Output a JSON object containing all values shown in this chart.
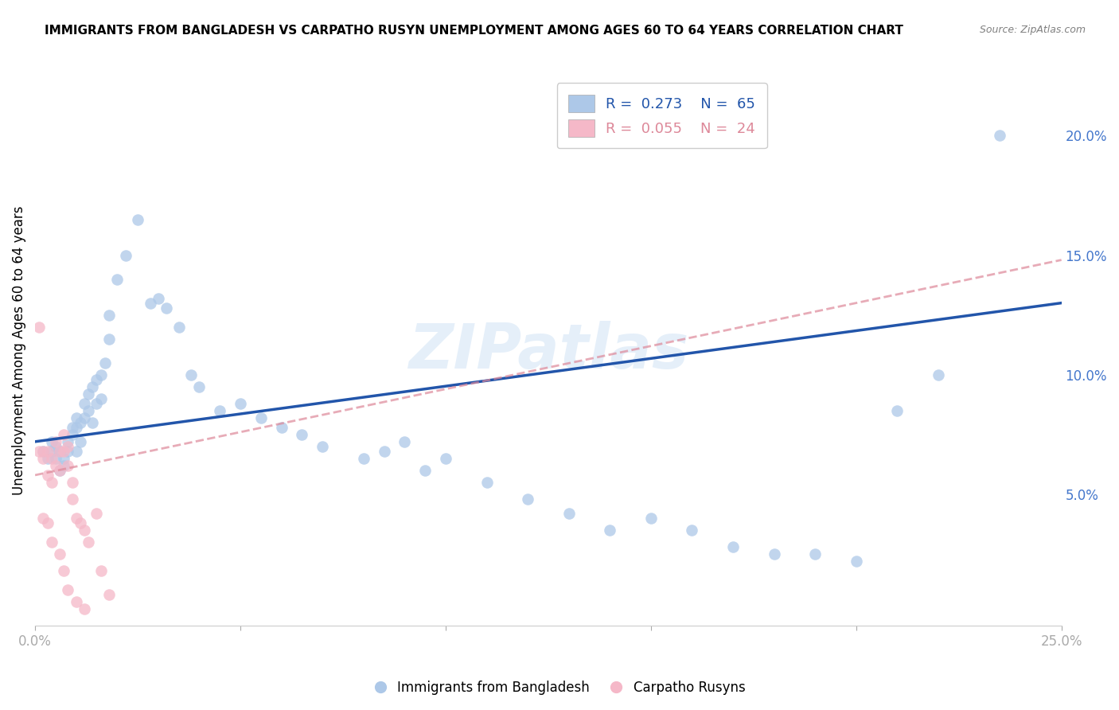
{
  "title": "IMMIGRANTS FROM BANGLADESH VS CARPATHO RUSYN UNEMPLOYMENT AMONG AGES 60 TO 64 YEARS CORRELATION CHART",
  "source": "Source: ZipAtlas.com",
  "ylabel": "Unemployment Among Ages 60 to 64 years",
  "watermark": "ZIPatlas",
  "xlim": [
    0,
    0.25
  ],
  "ylim": [
    -0.005,
    0.225
  ],
  "xticks": [
    0.0,
    0.05,
    0.1,
    0.15,
    0.2,
    0.25
  ],
  "xtick_labels": [
    "0.0%",
    "",
    "",
    "",
    "",
    "25.0%"
  ],
  "yticks_right": [
    0.05,
    0.1,
    0.15,
    0.2
  ],
  "ytick_right_labels": [
    "5.0%",
    "10.0%",
    "15.0%",
    "20.0%"
  ],
  "blue_scatter_x": [
    0.002,
    0.003,
    0.004,
    0.004,
    0.005,
    0.005,
    0.006,
    0.006,
    0.007,
    0.007,
    0.008,
    0.008,
    0.009,
    0.009,
    0.01,
    0.01,
    0.01,
    0.011,
    0.011,
    0.012,
    0.012,
    0.013,
    0.013,
    0.014,
    0.014,
    0.015,
    0.015,
    0.016,
    0.016,
    0.017,
    0.018,
    0.018,
    0.02,
    0.022,
    0.025,
    0.028,
    0.03,
    0.032,
    0.035,
    0.038,
    0.04,
    0.045,
    0.05,
    0.055,
    0.06,
    0.065,
    0.07,
    0.08,
    0.085,
    0.09,
    0.095,
    0.1,
    0.11,
    0.12,
    0.13,
    0.14,
    0.15,
    0.16,
    0.17,
    0.18,
    0.19,
    0.2,
    0.21,
    0.22,
    0.235
  ],
  "blue_scatter_y": [
    0.068,
    0.065,
    0.068,
    0.072,
    0.07,
    0.065,
    0.068,
    0.06,
    0.065,
    0.062,
    0.072,
    0.068,
    0.078,
    0.075,
    0.082,
    0.078,
    0.068,
    0.08,
    0.072,
    0.088,
    0.082,
    0.092,
    0.085,
    0.095,
    0.08,
    0.098,
    0.088,
    0.1,
    0.09,
    0.105,
    0.125,
    0.115,
    0.14,
    0.15,
    0.165,
    0.13,
    0.132,
    0.128,
    0.12,
    0.1,
    0.095,
    0.085,
    0.088,
    0.082,
    0.078,
    0.075,
    0.07,
    0.065,
    0.068,
    0.072,
    0.06,
    0.065,
    0.055,
    0.048,
    0.042,
    0.035,
    0.04,
    0.035,
    0.028,
    0.025,
    0.025,
    0.022,
    0.085,
    0.1,
    0.2
  ],
  "pink_scatter_x": [
    0.001,
    0.002,
    0.002,
    0.003,
    0.003,
    0.004,
    0.004,
    0.005,
    0.005,
    0.006,
    0.006,
    0.007,
    0.007,
    0.008,
    0.008,
    0.009,
    0.009,
    0.01,
    0.011,
    0.012,
    0.013,
    0.015,
    0.016,
    0.018
  ],
  "pink_scatter_y": [
    0.068,
    0.068,
    0.065,
    0.068,
    0.058,
    0.065,
    0.055,
    0.072,
    0.062,
    0.068,
    0.06,
    0.075,
    0.068,
    0.07,
    0.062,
    0.055,
    0.048,
    0.04,
    0.038,
    0.035,
    0.03,
    0.042,
    0.018,
    0.008
  ],
  "pink_extra_x": [
    0.001,
    0.002,
    0.003,
    0.004,
    0.006,
    0.007,
    0.008,
    0.01,
    0.012
  ],
  "pink_extra_y": [
    0.12,
    0.04,
    0.038,
    0.03,
    0.025,
    0.018,
    0.01,
    0.005,
    0.002
  ],
  "blue_line_x": [
    0.0,
    0.25
  ],
  "blue_line_y": [
    0.072,
    0.13
  ],
  "pink_line_x": [
    0.0,
    0.25
  ],
  "pink_line_y": [
    0.058,
    0.148
  ],
  "blue_color": "#adc8e8",
  "pink_color": "#f5b8c8",
  "blue_line_color": "#2255aa",
  "pink_line_color": "#dd8899",
  "background_color": "#ffffff",
  "grid_color": "#cccccc",
  "title_fontsize": 11,
  "axis_label_color": "#4477cc",
  "scatter_size": 110
}
